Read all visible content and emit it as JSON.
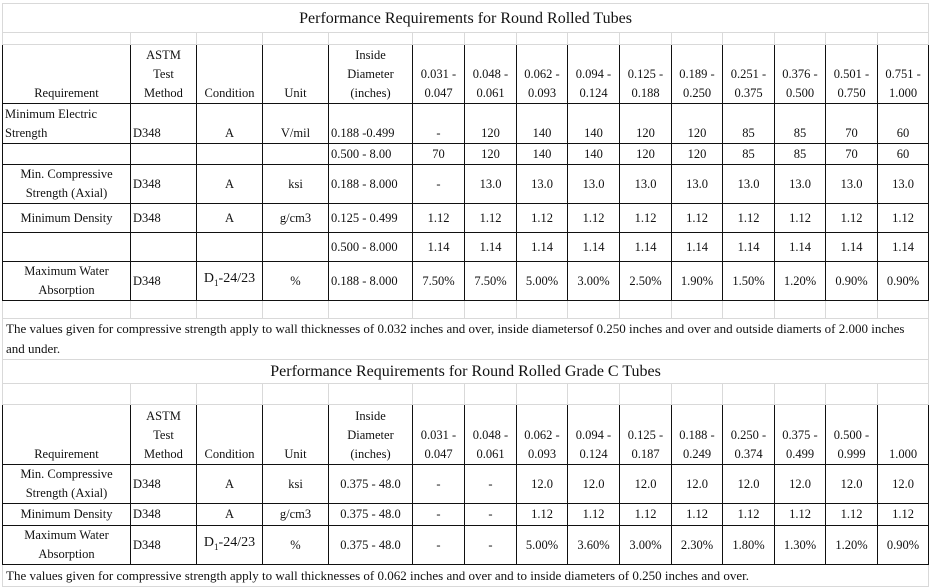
{
  "table1": {
    "title": "Performance Requirements for Round Rolled Tubes",
    "headers": {
      "requirement": "Requirement",
      "astm": [
        "ASTM",
        "Test",
        "Method"
      ],
      "condition": "Condition",
      "unit": "Unit",
      "diameter": [
        "Inside",
        "Diameter",
        "(inches)"
      ],
      "ranges": [
        [
          "0.031 -",
          "0.047"
        ],
        [
          "0.048 -",
          "0.061"
        ],
        [
          "0.062 -",
          "0.093"
        ],
        [
          "0.094 -",
          "0.124"
        ],
        [
          "0.125 -",
          "0.188"
        ],
        [
          "0.189 -",
          "0.250"
        ],
        [
          "0.251 -",
          "0.375"
        ],
        [
          "0.376 -",
          "0.500"
        ],
        [
          "0.501 -",
          "0.750"
        ],
        [
          "0.751 -",
          "1.000"
        ]
      ]
    },
    "rows": [
      {
        "requirement": [
          "Minimum Electric",
          "Strength"
        ],
        "method": "D348",
        "condition": "A",
        "unit": "V/mil",
        "diameter": "0.188 -0.499",
        "values": [
          "-",
          "120",
          "140",
          "140",
          "120",
          "120",
          "85",
          "85",
          "70",
          "60"
        ]
      },
      {
        "requirement": [
          "",
          ""
        ],
        "method": "",
        "condition": "",
        "unit": "",
        "diameter": "0.500 - 8.00",
        "values": [
          "70",
          "120",
          "140",
          "140",
          "120",
          "120",
          "85",
          "85",
          "70",
          "60"
        ]
      },
      {
        "requirement": [
          "Min. Compressive",
          "Strength (Axial)"
        ],
        "method": "D348",
        "condition": "A",
        "unit": "ksi",
        "diameter": "0.188 - 8.000",
        "values": [
          "-",
          "13.0",
          "13.0",
          "13.0",
          "13.0",
          "13.0",
          "13.0",
          "13.0",
          "13.0",
          "13.0"
        ]
      },
      {
        "requirement": [
          "Minimum Density",
          ""
        ],
        "method": "D348",
        "condition": "A",
        "unit": "g/cm3",
        "diameter": "0.125 - 0.499",
        "values": [
          "1.12",
          "1.12",
          "1.12",
          "1.12",
          "1.12",
          "1.12",
          "1.12",
          "1.12",
          "1.12",
          "1.12"
        ]
      },
      {
        "requirement": [
          "",
          ""
        ],
        "method": "",
        "condition": "",
        "unit": "",
        "diameter": "0.500 - 8.000",
        "values": [
          "1.14",
          "1.14",
          "1.14",
          "1.14",
          "1.14",
          "1.14",
          "1.14",
          "1.14",
          "1.14",
          "1.14"
        ]
      },
      {
        "requirement": [
          "Maximum Water",
          "Absorption"
        ],
        "method": "D348",
        "condition": "D1-24/23",
        "unit": "%",
        "diameter": "0.188 - 8.000",
        "values": [
          "7.50%",
          "7.50%",
          "5.00%",
          "3.00%",
          "2.50%",
          "1.90%",
          "1.50%",
          "1.20%",
          "0.90%",
          "0.90%"
        ]
      }
    ],
    "note": "The values given for compressive strength apply to wall thicknesses of 0.032 inches and over, inside diametersof 0.250 inches and over and outside diamerts of 2.000 inches and under."
  },
  "table2": {
    "title": "Performance Requirements for Round Rolled Grade C Tubes",
    "headers": {
      "requirement": "Requirement",
      "astm": [
        "ASTM",
        "Test",
        "Method"
      ],
      "condition": "Condition",
      "unit": "Unit",
      "diameter": [
        "Inside",
        "Diameter",
        "(inches)"
      ],
      "ranges": [
        [
          "0.031 -",
          "0.047"
        ],
        [
          "0.048 -",
          "0.061"
        ],
        [
          "0.062 -",
          "0.093"
        ],
        [
          "0.094 -",
          "0.124"
        ],
        [
          "0.125 -",
          "0.187"
        ],
        [
          "0.188 -",
          "0.249"
        ],
        [
          "0.250 -",
          "0.374"
        ],
        [
          "0.375 -",
          "0.499"
        ],
        [
          "0.500 -",
          "0.999"
        ],
        [
          "",
          "1.000"
        ]
      ]
    },
    "rows": [
      {
        "requirement": [
          "Min. Compressive",
          "Strength (Axial)"
        ],
        "method": "D348",
        "condition": "A",
        "unit": "ksi",
        "diameter": "0.375 - 48.0",
        "values": [
          "-",
          "-",
          "12.0",
          "12.0",
          "12.0",
          "12.0",
          "12.0",
          "12.0",
          "12.0",
          "12.0"
        ]
      },
      {
        "requirement": [
          "Minimum Density",
          ""
        ],
        "method": "D348",
        "condition": "A",
        "unit": "g/cm3",
        "diameter": "0.375 - 48.0",
        "values": [
          "-",
          "-",
          "1.12",
          "1.12",
          "1.12",
          "1.12",
          "1.12",
          "1.12",
          "1.12",
          "1.12"
        ]
      },
      {
        "requirement": [
          "Maximum Water",
          "Absorption"
        ],
        "method": "D348",
        "condition": "D1-24/23",
        "unit": "%",
        "diameter": "0.375 - 48.0",
        "values": [
          "-",
          "-",
          "5.00%",
          "3.60%",
          "3.00%",
          "2.30%",
          "1.80%",
          "1.30%",
          "1.20%",
          "0.90%"
        ]
      }
    ],
    "note": "The values given for compressive strength apply to wall thicknesses of 0.062 inches and over and to inside diameters of 0.250 inches and over."
  }
}
